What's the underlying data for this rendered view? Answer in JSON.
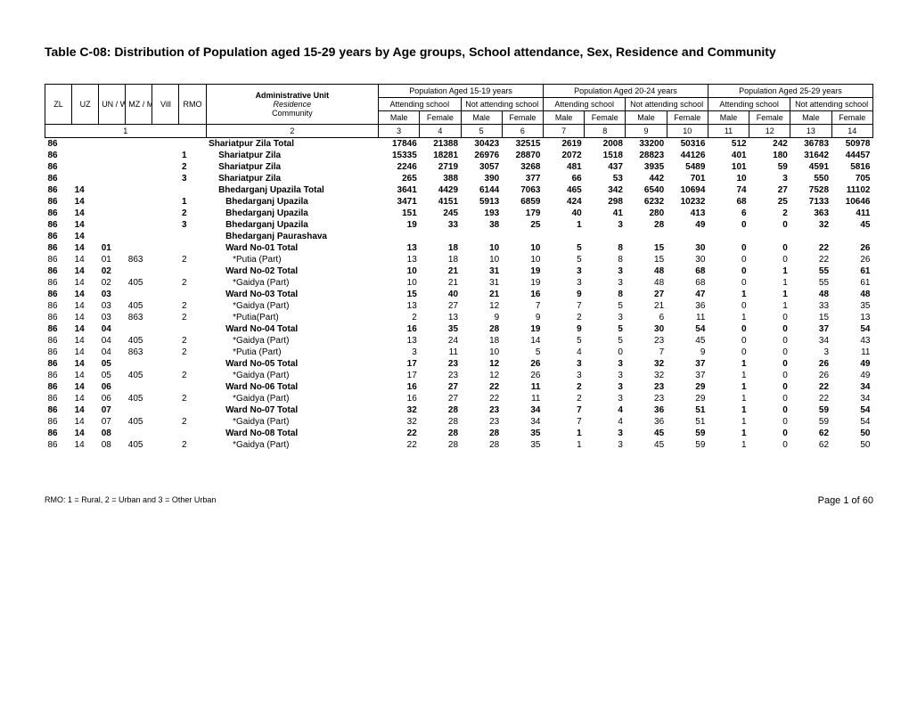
{
  "title": "Table C-08: Distribution of Population aged 15-29 years by Age groups, School attendance, Sex, Residence and Community",
  "footnote": "RMO: 1 = Rural, 2 = Urban and 3 = Other Urban",
  "page_label": "Page 1 of 60",
  "headers": {
    "code_cols": [
      "ZL",
      "UZ",
      "UN / WA",
      "MZ / MH",
      "Vill",
      "RMO"
    ],
    "admin_label_l1": "Administrative Unit",
    "admin_label_l2": "Residence",
    "admin_label_l3": "Community",
    "age_groups": [
      "Population Aged 15-19 years",
      "Population Aged 20-24 years",
      "Population Aged 25-29 years"
    ],
    "att": "Attending school",
    "noatt": "Not attending school",
    "male": "Male",
    "female": "Female",
    "numrow_left": "1",
    "numrow_admin": "2",
    "numrow_vals": [
      "3",
      "4",
      "5",
      "6",
      "7",
      "8",
      "9",
      "10",
      "11",
      "12",
      "13",
      "14"
    ]
  },
  "rows": [
    {
      "bold": true,
      "indent": 0,
      "zl": "86",
      "uz": "",
      "un": "",
      "mz": "",
      "vill": "",
      "rmo": "",
      "label": "Shariatpur Zila Total",
      "v": [
        "17846",
        "21388",
        "30423",
        "32515",
        "2619",
        "2008",
        "33200",
        "50316",
        "512",
        "242",
        "36783",
        "50978"
      ]
    },
    {
      "bold": true,
      "indent": 1,
      "zl": "86",
      "uz": "",
      "un": "",
      "mz": "",
      "vill": "",
      "rmo": "1",
      "label": "Shariatpur Zila",
      "v": [
        "15335",
        "18281",
        "26976",
        "28870",
        "2072",
        "1518",
        "28823",
        "44126",
        "401",
        "180",
        "31642",
        "44457"
      ]
    },
    {
      "bold": true,
      "indent": 1,
      "zl": "86",
      "uz": "",
      "un": "",
      "mz": "",
      "vill": "",
      "rmo": "2",
      "label": "Shariatpur Zila",
      "v": [
        "2246",
        "2719",
        "3057",
        "3268",
        "481",
        "437",
        "3935",
        "5489",
        "101",
        "59",
        "4591",
        "5816"
      ]
    },
    {
      "bold": true,
      "indent": 1,
      "zl": "86",
      "uz": "",
      "un": "",
      "mz": "",
      "vill": "",
      "rmo": "3",
      "label": "Shariatpur Zila",
      "v": [
        "265",
        "388",
        "390",
        "377",
        "66",
        "53",
        "442",
        "701",
        "10",
        "3",
        "550",
        "705"
      ]
    },
    {
      "bold": true,
      "indent": 1,
      "zl": "86",
      "uz": "14",
      "un": "",
      "mz": "",
      "vill": "",
      "rmo": "",
      "label": "Bhedarganj Upazila Total",
      "v": [
        "3641",
        "4429",
        "6144",
        "7063",
        "465",
        "342",
        "6540",
        "10694",
        "74",
        "27",
        "7528",
        "11102"
      ]
    },
    {
      "bold": true,
      "indent": 2,
      "zl": "86",
      "uz": "14",
      "un": "",
      "mz": "",
      "vill": "",
      "rmo": "1",
      "label": "Bhedarganj Upazila",
      "v": [
        "3471",
        "4151",
        "5913",
        "6859",
        "424",
        "298",
        "6232",
        "10232",
        "68",
        "25",
        "7133",
        "10646"
      ]
    },
    {
      "bold": true,
      "indent": 2,
      "zl": "86",
      "uz": "14",
      "un": "",
      "mz": "",
      "vill": "",
      "rmo": "2",
      "label": "Bhedarganj Upazila",
      "v": [
        "151",
        "245",
        "193",
        "179",
        "40",
        "41",
        "280",
        "413",
        "6",
        "2",
        "363",
        "411"
      ]
    },
    {
      "bold": true,
      "indent": 2,
      "zl": "86",
      "uz": "14",
      "un": "",
      "mz": "",
      "vill": "",
      "rmo": "3",
      "label": "Bhedarganj Upazila",
      "v": [
        "19",
        "33",
        "38",
        "25",
        "1",
        "3",
        "28",
        "49",
        "0",
        "0",
        "32",
        "45"
      ]
    },
    {
      "bold": true,
      "indent": 2,
      "zl": "86",
      "uz": "14",
      "un": "",
      "mz": "",
      "vill": "",
      "rmo": "",
      "label": "Bhedarganj Paurashava",
      "v": [
        "",
        "",
        "",
        "",
        "",
        "",
        "",
        "",
        "",
        "",
        "",
        ""
      ]
    },
    {
      "bold": true,
      "indent": 2,
      "zl": "86",
      "uz": "14",
      "un": "01",
      "mz": "",
      "vill": "",
      "rmo": "",
      "label": "Ward No-01 Total",
      "v": [
        "13",
        "18",
        "10",
        "10",
        "5",
        "8",
        "15",
        "30",
        "0",
        "0",
        "22",
        "26"
      ]
    },
    {
      "bold": false,
      "indent": 3,
      "zl": "86",
      "uz": "14",
      "un": "01",
      "mz": "863",
      "vill": "",
      "rmo": "2",
      "label": "*Putia (Part)",
      "v": [
        "13",
        "18",
        "10",
        "10",
        "5",
        "8",
        "15",
        "30",
        "0",
        "0",
        "22",
        "26"
      ]
    },
    {
      "bold": true,
      "indent": 2,
      "zl": "86",
      "uz": "14",
      "un": "02",
      "mz": "",
      "vill": "",
      "rmo": "",
      "label": "Ward No-02 Total",
      "v": [
        "10",
        "21",
        "31",
        "19",
        "3",
        "3",
        "48",
        "68",
        "0",
        "1",
        "55",
        "61"
      ]
    },
    {
      "bold": false,
      "indent": 3,
      "zl": "86",
      "uz": "14",
      "un": "02",
      "mz": "405",
      "vill": "",
      "rmo": "2",
      "label": "*Gaidya (Part)",
      "v": [
        "10",
        "21",
        "31",
        "19",
        "3",
        "3",
        "48",
        "68",
        "0",
        "1",
        "55",
        "61"
      ]
    },
    {
      "bold": true,
      "indent": 2,
      "zl": "86",
      "uz": "14",
      "un": "03",
      "mz": "",
      "vill": "",
      "rmo": "",
      "label": "Ward No-03 Total",
      "v": [
        "15",
        "40",
        "21",
        "16",
        "9",
        "8",
        "27",
        "47",
        "1",
        "1",
        "48",
        "48"
      ]
    },
    {
      "bold": false,
      "indent": 3,
      "zl": "86",
      "uz": "14",
      "un": "03",
      "mz": "405",
      "vill": "",
      "rmo": "2",
      "label": "*Gaidya (Part)",
      "v": [
        "13",
        "27",
        "12",
        "7",
        "7",
        "5",
        "21",
        "36",
        "0",
        "1",
        "33",
        "35"
      ]
    },
    {
      "bold": false,
      "indent": 3,
      "zl": "86",
      "uz": "14",
      "un": "03",
      "mz": "863",
      "vill": "",
      "rmo": "2",
      "label": "*Putia(Part)",
      "v": [
        "2",
        "13",
        "9",
        "9",
        "2",
        "3",
        "6",
        "11",
        "1",
        "0",
        "15",
        "13"
      ]
    },
    {
      "bold": true,
      "indent": 2,
      "zl": "86",
      "uz": "14",
      "un": "04",
      "mz": "",
      "vill": "",
      "rmo": "",
      "label": "Ward No-04 Total",
      "v": [
        "16",
        "35",
        "28",
        "19",
        "9",
        "5",
        "30",
        "54",
        "0",
        "0",
        "37",
        "54"
      ]
    },
    {
      "bold": false,
      "indent": 3,
      "zl": "86",
      "uz": "14",
      "un": "04",
      "mz": "405",
      "vill": "",
      "rmo": "2",
      "label": "*Gaidya (Part)",
      "v": [
        "13",
        "24",
        "18",
        "14",
        "5",
        "5",
        "23",
        "45",
        "0",
        "0",
        "34",
        "43"
      ]
    },
    {
      "bold": false,
      "indent": 3,
      "zl": "86",
      "uz": "14",
      "un": "04",
      "mz": "863",
      "vill": "",
      "rmo": "2",
      "label": "*Putia (Part)",
      "v": [
        "3",
        "11",
        "10",
        "5",
        "4",
        "0",
        "7",
        "9",
        "0",
        "0",
        "3",
        "11"
      ]
    },
    {
      "bold": true,
      "indent": 2,
      "zl": "86",
      "uz": "14",
      "un": "05",
      "mz": "",
      "vill": "",
      "rmo": "",
      "label": "Ward No-05 Total",
      "v": [
        "17",
        "23",
        "12",
        "26",
        "3",
        "3",
        "32",
        "37",
        "1",
        "0",
        "26",
        "49"
      ]
    },
    {
      "bold": false,
      "indent": 3,
      "zl": "86",
      "uz": "14",
      "un": "05",
      "mz": "405",
      "vill": "",
      "rmo": "2",
      "label": "*Gaidya (Part)",
      "v": [
        "17",
        "23",
        "12",
        "26",
        "3",
        "3",
        "32",
        "37",
        "1",
        "0",
        "26",
        "49"
      ]
    },
    {
      "bold": true,
      "indent": 2,
      "zl": "86",
      "uz": "14",
      "un": "06",
      "mz": "",
      "vill": "",
      "rmo": "",
      "label": "Ward No-06 Total",
      "v": [
        "16",
        "27",
        "22",
        "11",
        "2",
        "3",
        "23",
        "29",
        "1",
        "0",
        "22",
        "34"
      ]
    },
    {
      "bold": false,
      "indent": 3,
      "zl": "86",
      "uz": "14",
      "un": "06",
      "mz": "405",
      "vill": "",
      "rmo": "2",
      "label": "*Gaidya (Part)",
      "v": [
        "16",
        "27",
        "22",
        "11",
        "2",
        "3",
        "23",
        "29",
        "1",
        "0",
        "22",
        "34"
      ]
    },
    {
      "bold": true,
      "indent": 2,
      "zl": "86",
      "uz": "14",
      "un": "07",
      "mz": "",
      "vill": "",
      "rmo": "",
      "label": "Ward No-07 Total",
      "v": [
        "32",
        "28",
        "23",
        "34",
        "7",
        "4",
        "36",
        "51",
        "1",
        "0",
        "59",
        "54"
      ]
    },
    {
      "bold": false,
      "indent": 3,
      "zl": "86",
      "uz": "14",
      "un": "07",
      "mz": "405",
      "vill": "",
      "rmo": "2",
      "label": "*Gaidya (Part)",
      "v": [
        "32",
        "28",
        "23",
        "34",
        "7",
        "4",
        "36",
        "51",
        "1",
        "0",
        "59",
        "54"
      ]
    },
    {
      "bold": true,
      "indent": 2,
      "zl": "86",
      "uz": "14",
      "un": "08",
      "mz": "",
      "vill": "",
      "rmo": "",
      "label": "Ward No-08 Total",
      "v": [
        "22",
        "28",
        "28",
        "35",
        "1",
        "3",
        "45",
        "59",
        "1",
        "0",
        "62",
        "50"
      ]
    },
    {
      "bold": false,
      "indent": 3,
      "zl": "86",
      "uz": "14",
      "un": "08",
      "mz": "405",
      "vill": "",
      "rmo": "2",
      "label": "*Gaidya (Part)",
      "v": [
        "22",
        "28",
        "28",
        "35",
        "1",
        "3",
        "45",
        "59",
        "1",
        "0",
        "62",
        "50"
      ]
    }
  ]
}
